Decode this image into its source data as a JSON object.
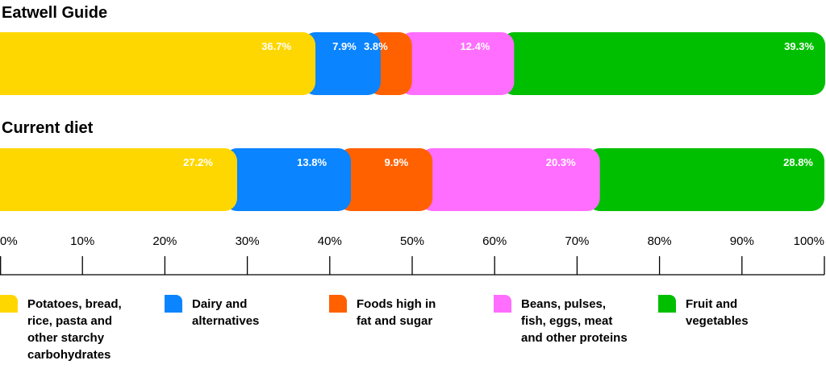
{
  "chart_data": {
    "type": "bar",
    "orientation": "horizontal-stacked",
    "xlim": [
      0,
      100
    ],
    "ticks": [
      "0%",
      "10%",
      "20%",
      "30%",
      "40%",
      "50%",
      "60%",
      "70%",
      "80%",
      "90%",
      "100%"
    ],
    "legend_position": "bottom",
    "series": [
      {
        "name": "Potatoes, bread, rice, pasta and other starchy carbohydrates",
        "legend_lines": [
          "Potatoes, bread,",
          "rice, pasta and",
          "other starchy",
          "carbohydrates"
        ],
        "color": "#FFD700"
      },
      {
        "name": "Dairy and alternatives",
        "legend_lines": [
          "Dairy and",
          "alternatives"
        ],
        "color": "#0A84FF"
      },
      {
        "name": "Foods high in fat and sugar",
        "legend_lines": [
          "Foods high in",
          "fat and sugar"
        ],
        "color": "#FF6100"
      },
      {
        "name": "Beans, pulses, fish, eggs, meat and other proteins",
        "legend_lines": [
          "Beans, pulses,",
          "fish, eggs, meat",
          "and other proteins"
        ],
        "color": "#FF6EFF"
      },
      {
        "name": "Fruit and vegetables",
        "legend_lines": [
          "Fruit and",
          "vegetables"
        ],
        "color": "#00BF00"
      }
    ],
    "rows": [
      {
        "title": "Eatwell Guide",
        "values": [
          36.7,
          7.9,
          3.8,
          12.4,
          39.3
        ],
        "labels": [
          "36.7%",
          "7.9%",
          "3.8%",
          "12.4%",
          "39.3%"
        ]
      },
      {
        "title": "Current diet",
        "values": [
          27.2,
          13.8,
          9.9,
          20.3,
          28.8
        ],
        "labels": [
          "27.2%",
          "13.8%",
          "9.9%",
          "20.3%",
          "28.8%"
        ]
      }
    ]
  }
}
